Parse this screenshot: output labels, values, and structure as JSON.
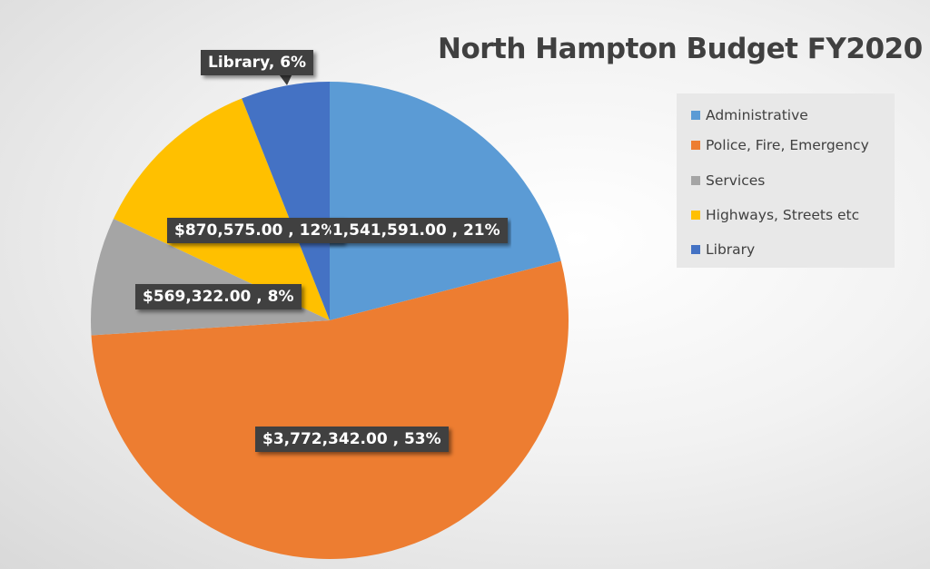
{
  "chart_data": {
    "type": "pie",
    "title": "North Hampton Budget FY2020",
    "legend_position": "right",
    "slices": [
      {
        "name": "Administrative",
        "value": 1541591.0,
        "percent": 21,
        "label": "$1,541,591.00 , 21%",
        "color": "#5b9bd5"
      },
      {
        "name": "Police, Fire, Emergency",
        "value": 3772342.0,
        "percent": 53,
        "label": "$3,772,342.00 , 53%",
        "color": "#ed7d31"
      },
      {
        "name": "Services",
        "value": 569322.0,
        "percent": 8,
        "label": "$569,322.00 , 8%",
        "color": "#a5a5a5"
      },
      {
        "name": "Highways, Streets etc",
        "value": 870575.0,
        "percent": 12,
        "label": "$870,575.00 , 12%",
        "color": "#ffc000"
      },
      {
        "name": "Library",
        "value": null,
        "percent": 6,
        "label": "Library, 6%",
        "color": "#4472c4"
      }
    ]
  }
}
